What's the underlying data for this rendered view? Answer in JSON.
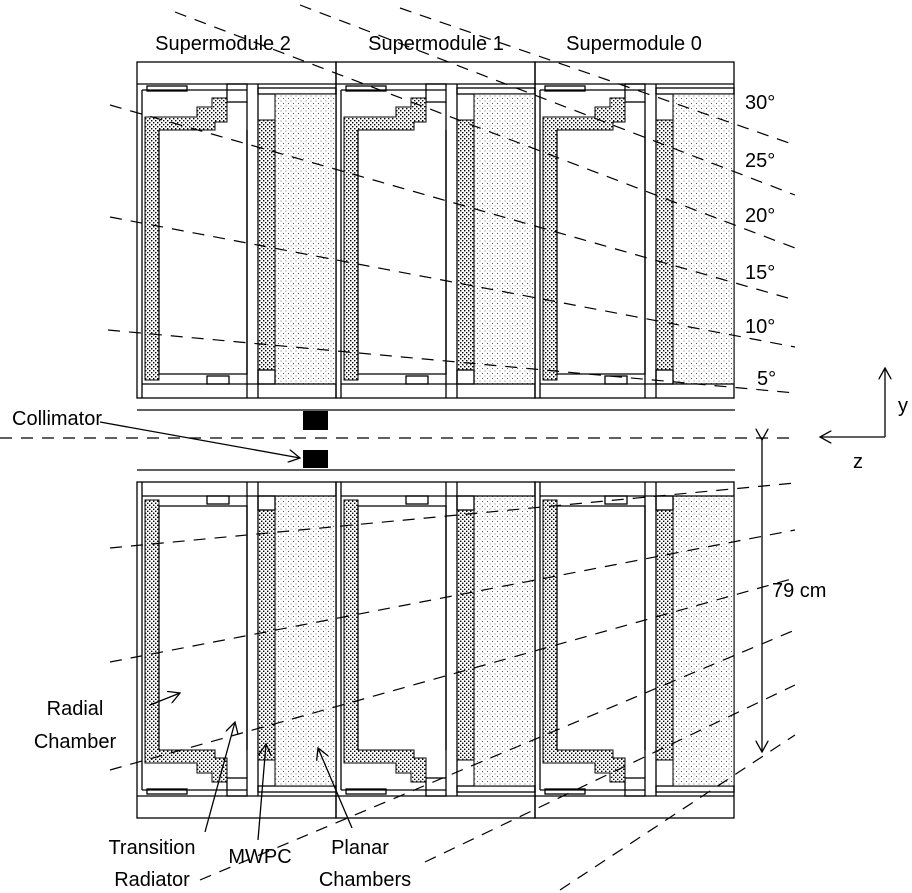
{
  "supermodules": [
    "Supermodule 2",
    "Supermodule 1",
    "Supermodule 0"
  ],
  "angles": [
    "30°",
    "25°",
    "20°",
    "15°",
    "10°",
    "5°"
  ],
  "axes": {
    "y": "y",
    "z": "z"
  },
  "labels": {
    "collimator": "Collimator",
    "distance": "79 cm",
    "radial_chamber": [
      "Radial",
      "Chamber"
    ],
    "transition_radiator": [
      "Transition",
      "Radiator"
    ],
    "mwpc": "MWPC",
    "planar_chambers": [
      "Planar",
      "Chambers"
    ]
  }
}
